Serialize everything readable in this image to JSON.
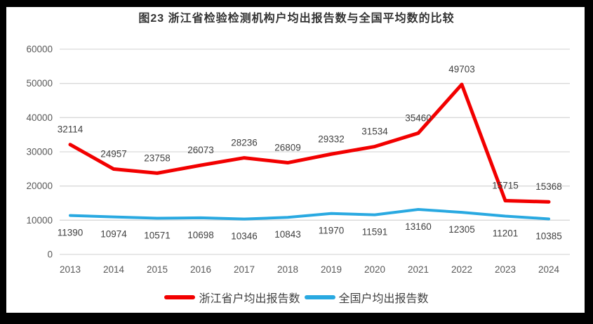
{
  "frame": {
    "border_color": "#000000",
    "background": "#ffffff"
  },
  "title": "图23  浙江省检验检测机构户均出报告数与全国平均数的比较",
  "colors": {
    "gridline": "#d9d9d9",
    "axis_text": "#595959",
    "data_label": "#404040",
    "legend_text": "#404040",
    "title_text": "#333333",
    "zhejiang_red": "#f20000",
    "national_blue": "#29a9e1"
  },
  "chart_data": {
    "type": "line",
    "title": "图23  浙江省检验检测机构户均出报告数与全国平均数的比较",
    "categories": [
      "2013",
      "2014",
      "2015",
      "2016",
      "2017",
      "2018",
      "2019",
      "2020",
      "2021",
      "2022",
      "2023",
      "2024"
    ],
    "series": [
      {
        "name": "浙江省户均出报告数",
        "color": "#f20000",
        "label_position": "above",
        "values": [
          32114,
          24957,
          23758,
          26073,
          28236,
          26809,
          29332,
          31534,
          35460,
          49703,
          15715,
          15368
        ]
      },
      {
        "name": "全国户均出报告数",
        "color": "#29a9e1",
        "label_position": "below",
        "values": [
          11390,
          10974,
          10571,
          10698,
          10346,
          10843,
          11970,
          11591,
          13160,
          12305,
          11201,
          10385
        ]
      }
    ],
    "xlabel": "",
    "ylabel": "",
    "ylim": [
      0,
      60000
    ],
    "y_ticks": [
      0,
      10000,
      20000,
      30000,
      40000,
      50000,
      60000
    ],
    "grid": true,
    "legend_position": "bottom"
  }
}
